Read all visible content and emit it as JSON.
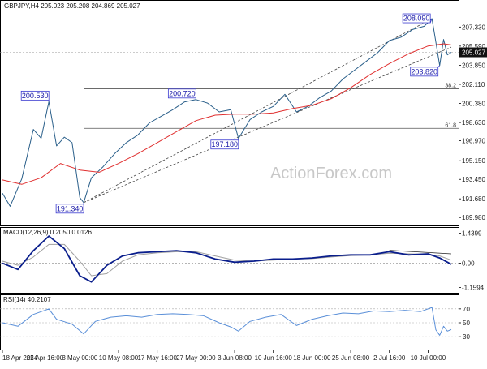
{
  "chart_data": {
    "type": "line",
    "header": {
      "symbol": "GBPJPY,H4",
      "open": "205.023",
      "high": "205.208",
      "low": "204.869",
      "close": "205.027"
    },
    "watermark": "ActionForex.com",
    "price_panel": {
      "ylim": [
        189.7,
        209.2
      ],
      "y_ticks": [
        "207.330",
        "205.590",
        "203.850",
        "202.110",
        "200.380",
        "198.630",
        "196.970",
        "195.150",
        "193.450",
        "191.680",
        "189.980"
      ],
      "current_price": "205.027",
      "price_series": [
        {
          "x": 0,
          "y": 192.2
        },
        {
          "x": 2,
          "y": 191.0
        },
        {
          "x": 5,
          "y": 193.5
        },
        {
          "x": 8,
          "y": 198.0
        },
        {
          "x": 10,
          "y": 197.2
        },
        {
          "x": 12,
          "y": 200.53
        },
        {
          "x": 14,
          "y": 196.5
        },
        {
          "x": 16,
          "y": 197.3
        },
        {
          "x": 18,
          "y": 196.8
        },
        {
          "x": 20,
          "y": 191.8
        },
        {
          "x": 21,
          "y": 191.34
        },
        {
          "x": 23,
          "y": 193.6
        },
        {
          "x": 26,
          "y": 194.6
        },
        {
          "x": 29,
          "y": 195.8
        },
        {
          "x": 32,
          "y": 196.8
        },
        {
          "x": 35,
          "y": 197.5
        },
        {
          "x": 38,
          "y": 198.6
        },
        {
          "x": 41,
          "y": 199.2
        },
        {
          "x": 44,
          "y": 199.8
        },
        {
          "x": 47,
          "y": 200.5
        },
        {
          "x": 50,
          "y": 200.72
        },
        {
          "x": 53,
          "y": 200.4
        },
        {
          "x": 56,
          "y": 199.6
        },
        {
          "x": 59,
          "y": 199.8
        },
        {
          "x": 61,
          "y": 197.18
        },
        {
          "x": 64,
          "y": 198.9
        },
        {
          "x": 67,
          "y": 199.6
        },
        {
          "x": 70,
          "y": 200.1
        },
        {
          "x": 73,
          "y": 201.2
        },
        {
          "x": 76,
          "y": 199.6
        },
        {
          "x": 79,
          "y": 200.1
        },
        {
          "x": 82,
          "y": 200.9
        },
        {
          "x": 85,
          "y": 201.5
        },
        {
          "x": 88,
          "y": 202.6
        },
        {
          "x": 91,
          "y": 203.4
        },
        {
          "x": 94,
          "y": 204.2
        },
        {
          "x": 97,
          "y": 205.0
        },
        {
          "x": 100,
          "y": 206.1
        },
        {
          "x": 103,
          "y": 206.4
        },
        {
          "x": 106,
          "y": 207.1
        },
        {
          "x": 109,
          "y": 207.4
        },
        {
          "x": 111,
          "y": 208.09
        },
        {
          "x": 112,
          "y": 206.0
        },
        {
          "x": 113,
          "y": 203.82
        },
        {
          "x": 114,
          "y": 206.2
        },
        {
          "x": 115,
          "y": 204.8
        },
        {
          "x": 116,
          "y": 205.027
        }
      ],
      "ma_series": [
        {
          "x": 0,
          "y": 193.4
        },
        {
          "x": 5,
          "y": 193.0
        },
        {
          "x": 10,
          "y": 193.6
        },
        {
          "x": 15,
          "y": 194.9
        },
        {
          "x": 20,
          "y": 194.3
        },
        {
          "x": 25,
          "y": 194.1
        },
        {
          "x": 30,
          "y": 194.9
        },
        {
          "x": 35,
          "y": 195.8
        },
        {
          "x": 40,
          "y": 196.8
        },
        {
          "x": 45,
          "y": 197.8
        },
        {
          "x": 50,
          "y": 198.8
        },
        {
          "x": 55,
          "y": 199.3
        },
        {
          "x": 60,
          "y": 199.4
        },
        {
          "x": 65,
          "y": 199.4
        },
        {
          "x": 70,
          "y": 199.5
        },
        {
          "x": 75,
          "y": 199.9
        },
        {
          "x": 80,
          "y": 200.2
        },
        {
          "x": 85,
          "y": 200.8
        },
        {
          "x": 90,
          "y": 201.8
        },
        {
          "x": 95,
          "y": 203.0
        },
        {
          "x": 100,
          "y": 204.0
        },
        {
          "x": 105,
          "y": 204.9
        },
        {
          "x": 110,
          "y": 205.6
        },
        {
          "x": 114,
          "y": 205.8
        },
        {
          "x": 116,
          "y": 205.7
        }
      ],
      "channel_upper": [
        {
          "x": 21,
          "y": 191.34
        },
        {
          "x": 111,
          "y": 208.09
        }
      ],
      "channel_lower": [
        {
          "x": 21,
          "y": 191.34
        },
        {
          "x": 116,
          "y": 205.5
        }
      ],
      "fib_levels": [
        {
          "label": "38.2",
          "y": 201.7
        },
        {
          "label": "61.8",
          "y": 198.1
        }
      ],
      "price_labels": [
        {
          "text": "200.530",
          "x": 12,
          "y": 200.53,
          "anchor": "above"
        },
        {
          "text": "191.340",
          "x": 21,
          "y": 191.34,
          "anchor": "below"
        },
        {
          "text": "200.720",
          "x": 50,
          "y": 200.72,
          "anchor": "above"
        },
        {
          "text": "197.180",
          "x": 61,
          "y": 197.18,
          "anchor": "below"
        },
        {
          "text": "208.090",
          "x": 111,
          "y": 208.09,
          "anchor": "above"
        },
        {
          "text": "203.820",
          "x": 113,
          "y": 203.82,
          "anchor": "below"
        }
      ]
    },
    "macd_panel": {
      "title": "MACD(12,26,9) 0.2050 0.0126",
      "ylim": [
        -1.3,
        1.5
      ],
      "y_ticks": [
        "1.4399",
        "0.00",
        "-1.1594"
      ],
      "macd_series": [
        {
          "x": 0,
          "y": 0.0
        },
        {
          "x": 4,
          "y": -0.3
        },
        {
          "x": 8,
          "y": 0.6
        },
        {
          "x": 12,
          "y": 1.3
        },
        {
          "x": 16,
          "y": 0.7
        },
        {
          "x": 20,
          "y": -0.6
        },
        {
          "x": 23,
          "y": -0.9
        },
        {
          "x": 27,
          "y": -0.1
        },
        {
          "x": 31,
          "y": 0.35
        },
        {
          "x": 35,
          "y": 0.5
        },
        {
          "x": 40,
          "y": 0.55
        },
        {
          "x": 45,
          "y": 0.6
        },
        {
          "x": 50,
          "y": 0.5
        },
        {
          "x": 55,
          "y": 0.2
        },
        {
          "x": 60,
          "y": 0.05
        },
        {
          "x": 65,
          "y": 0.1
        },
        {
          "x": 70,
          "y": 0.2
        },
        {
          "x": 75,
          "y": 0.2
        },
        {
          "x": 80,
          "y": 0.25
        },
        {
          "x": 85,
          "y": 0.35
        },
        {
          "x": 90,
          "y": 0.4
        },
        {
          "x": 95,
          "y": 0.4
        },
        {
          "x": 100,
          "y": 0.55
        },
        {
          "x": 105,
          "y": 0.4
        },
        {
          "x": 110,
          "y": 0.45
        },
        {
          "x": 113,
          "y": 0.25
        },
        {
          "x": 116,
          "y": -0.05
        }
      ],
      "signal_series": [
        {
          "x": 0,
          "y": 0.1
        },
        {
          "x": 4,
          "y": -0.1
        },
        {
          "x": 8,
          "y": 0.3
        },
        {
          "x": 12,
          "y": 0.9
        },
        {
          "x": 16,
          "y": 0.9
        },
        {
          "x": 20,
          "y": 0.1
        },
        {
          "x": 23,
          "y": -0.6
        },
        {
          "x": 27,
          "y": -0.5
        },
        {
          "x": 31,
          "y": 0.1
        },
        {
          "x": 35,
          "y": 0.4
        },
        {
          "x": 40,
          "y": 0.5
        },
        {
          "x": 45,
          "y": 0.55
        },
        {
          "x": 50,
          "y": 0.55
        },
        {
          "x": 55,
          "y": 0.35
        },
        {
          "x": 60,
          "y": 0.15
        },
        {
          "x": 65,
          "y": 0.1
        },
        {
          "x": 70,
          "y": 0.15
        },
        {
          "x": 75,
          "y": 0.2
        },
        {
          "x": 80,
          "y": 0.22
        },
        {
          "x": 85,
          "y": 0.3
        },
        {
          "x": 90,
          "y": 0.37
        },
        {
          "x": 95,
          "y": 0.4
        },
        {
          "x": 100,
          "y": 0.48
        },
        {
          "x": 105,
          "y": 0.45
        },
        {
          "x": 110,
          "y": 0.43
        },
        {
          "x": 113,
          "y": 0.35
        },
        {
          "x": 116,
          "y": 0.15
        }
      ],
      "divergence_line": [
        {
          "x": 100,
          "y": 0.62
        },
        {
          "x": 116,
          "y": 0.45
        }
      ]
    },
    "rsi_panel": {
      "title": "RSI(14) 40.2107",
      "ylim": [
        15,
        85
      ],
      "y_ticks": [
        "70",
        "50",
        "30"
      ],
      "rsi_series": [
        {
          "x": 0,
          "y": 50
        },
        {
          "x": 4,
          "y": 45
        },
        {
          "x": 8,
          "y": 62
        },
        {
          "x": 12,
          "y": 70
        },
        {
          "x": 14,
          "y": 55
        },
        {
          "x": 18,
          "y": 48
        },
        {
          "x": 21,
          "y": 34
        },
        {
          "x": 24,
          "y": 52
        },
        {
          "x": 28,
          "y": 58
        },
        {
          "x": 32,
          "y": 60
        },
        {
          "x": 36,
          "y": 58
        },
        {
          "x": 40,
          "y": 62
        },
        {
          "x": 44,
          "y": 63
        },
        {
          "x": 48,
          "y": 62
        },
        {
          "x": 52,
          "y": 60
        },
        {
          "x": 56,
          "y": 50
        },
        {
          "x": 59,
          "y": 44
        },
        {
          "x": 61,
          "y": 38
        },
        {
          "x": 64,
          "y": 52
        },
        {
          "x": 68,
          "y": 58
        },
        {
          "x": 72,
          "y": 62
        },
        {
          "x": 76,
          "y": 46
        },
        {
          "x": 80,
          "y": 55
        },
        {
          "x": 84,
          "y": 60
        },
        {
          "x": 88,
          "y": 64
        },
        {
          "x": 92,
          "y": 63
        },
        {
          "x": 96,
          "y": 67
        },
        {
          "x": 100,
          "y": 66
        },
        {
          "x": 104,
          "y": 68
        },
        {
          "x": 108,
          "y": 66
        },
        {
          "x": 111,
          "y": 72
        },
        {
          "x": 112,
          "y": 40
        },
        {
          "x": 113,
          "y": 32
        },
        {
          "x": 114,
          "y": 45
        },
        {
          "x": 115,
          "y": 38
        },
        {
          "x": 116,
          "y": 40.2
        }
      ]
    },
    "x_axis": {
      "range": [
        0,
        116
      ],
      "ticks": [
        {
          "x": 0,
          "label": "18 Apr 2024"
        },
        {
          "x": 11,
          "label": "25 Apr 16:00"
        },
        {
          "x": 20,
          "label": "3 May 00:00"
        },
        {
          "x": 30,
          "label": "10 May 08:00"
        },
        {
          "x": 40,
          "label": "17 May 16:00"
        },
        {
          "x": 50,
          "label": "27 May 00:00"
        },
        {
          "x": 60,
          "label": "3 Jun 08:00"
        },
        {
          "x": 70,
          "label": "10 Jun 16:00"
        },
        {
          "x": 80,
          "label": "18 Jun 00:00"
        },
        {
          "x": 90,
          "label": "25 Jun 08:00"
        },
        {
          "x": 100,
          "label": "2 Jul 16:00"
        },
        {
          "x": 110,
          "label": "10 Jul 00:00"
        }
      ]
    },
    "colors": {
      "price": "#2a5f8a",
      "ma": "#e03030",
      "macd": "#0a1e8c",
      "signal": "#a0a0a0",
      "rsi": "#5a8fd8",
      "label_border": "#3a3ad0",
      "label_text": "#1a1aa8",
      "channel": "#444444",
      "fib": "#555555",
      "current_box_bg": "#111111",
      "current_box_text": "#ffffff",
      "watermark": "#c8c8c8"
    }
  }
}
